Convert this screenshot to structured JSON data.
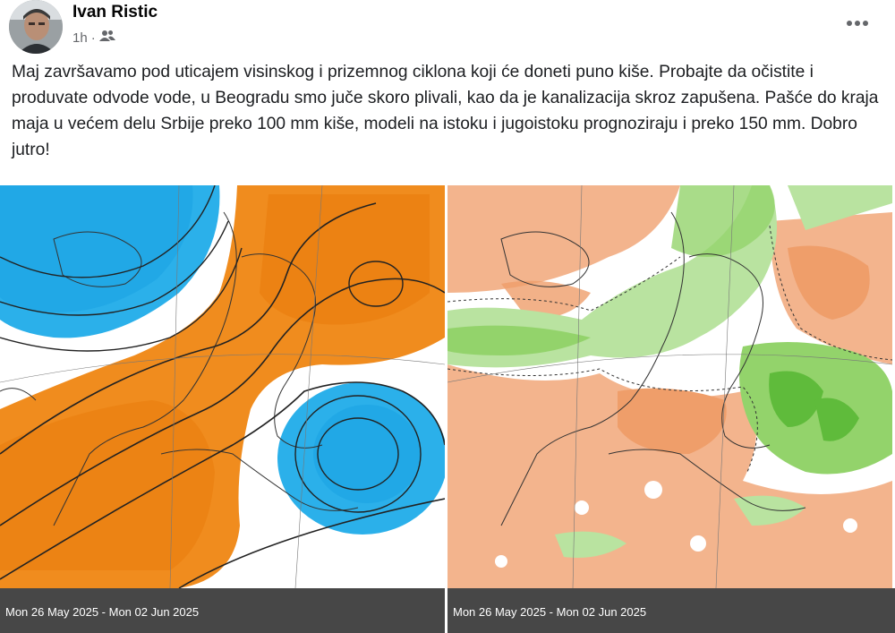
{
  "post": {
    "author": "Ivan Ristic",
    "time": "1h",
    "separator": "·",
    "audience_icon": "friends-icon",
    "more_icon": "more-horizontal-icon",
    "text": "Maj završavamo pod uticajem visinskog i prizemnog ciklona koji će doneti puno kiše. Probajte da očistite i produvate odvode vode, u Beogradu smo juče skoro plivali, kao da je kanalizacija skroz zapušena. Pašće do kraja maja u većem delu Srbije preko 100 mm kiše, modeli na istoku i jugoistoku prognoziraju i preko 150 mm. Dobro jutro!"
  },
  "images": [
    {
      "caption": "Mon 26 May 2025 - Mon 02 Jun 2025"
    },
    {
      "caption": "Mon 26 May 2025 - Mon 02 Jun 2025"
    }
  ],
  "colors": {
    "warm_anomaly": "#f08c1e",
    "cold_anomaly": "#2bb0ea",
    "wet_anomaly": "#93d36b",
    "dry_anomaly": "#f3b48d",
    "caption_bar": "#474747"
  }
}
